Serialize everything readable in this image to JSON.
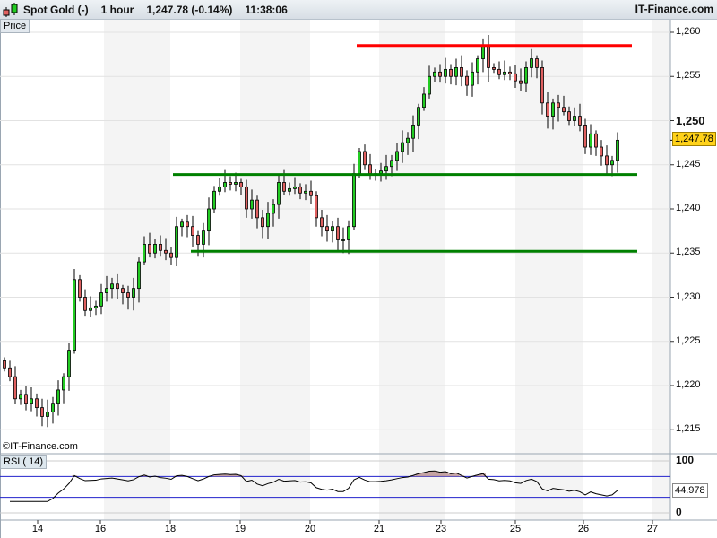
{
  "header": {
    "instrument": "Spot Gold (-)",
    "timeframe": "1 hour",
    "quote": "1,247.78 (-0.14%)",
    "time": "11:38:06",
    "brand": "IT-Finance.com"
  },
  "price_pane": {
    "label": "Price",
    "copyright": "©IT-Finance.com",
    "last_price": "1,247.78",
    "y_ticks": [
      "1,260",
      "1,255",
      "1,250",
      "1,245",
      "1,240",
      "1,235",
      "1,230",
      "1,225",
      "1,220",
      "1,215"
    ]
  },
  "rsi_pane": {
    "label": "RSI ( 14)",
    "value": "44.978",
    "y_ticks": [
      "100",
      "0"
    ],
    "levels": [
      70,
      30
    ]
  },
  "x_axis": {
    "labels": [
      "14",
      "16",
      "18",
      "19",
      "20",
      "21",
      "23",
      "25",
      "26",
      "27"
    ]
  },
  "colors": {
    "up": "#22cc22",
    "down": "#e06060",
    "resistance": "#ff0000",
    "support": "#008000",
    "rsi_bands": "#2222cc",
    "rsi_fill": "#b08080",
    "shade": "#f4f4f4"
  },
  "chart_data": {
    "type": "candlestick",
    "ylim": [
      1213,
      1262
    ],
    "closes": [
      1222,
      1221,
      1218.5,
      1219,
      1218,
      1218.5,
      1217.5,
      1216.5,
      1217,
      1218,
      1219.5,
      1221,
      1224,
      1232,
      1230,
      1228.5,
      1228.8,
      1229,
      1230.5,
      1231,
      1231.5,
      1231,
      1230.5,
      1230,
      1231,
      1234,
      1236,
      1235,
      1236,
      1235.3,
      1235,
      1234.5,
      1238,
      1238.5,
      1238,
      1237,
      1236,
      1237.5,
      1240,
      1242,
      1242.5,
      1243,
      1242.8,
      1243,
      1242.5,
      1240,
      1241,
      1239,
      1238,
      1239.5,
      1240.5,
      1243,
      1242,
      1242.3,
      1242.5,
      1241.8,
      1242,
      1241.5,
      1239,
      1238,
      1237.5,
      1238,
      1236.5,
      1236.5,
      1238,
      1244,
      1246.5,
      1245,
      1244,
      1244,
      1244.3,
      1244.8,
      1245.5,
      1246.5,
      1247.5,
      1248,
      1249.5,
      1251.5,
      1253,
      1255,
      1255.5,
      1255,
      1255.8,
      1255,
      1256,
      1255,
      1254,
      1255.5,
      1257,
      1258.5,
      1256,
      1255.8,
      1255.2,
      1255.5,
      1255.3,
      1254.5,
      1254.2,
      1256,
      1257,
      1256,
      1252,
      1250.5,
      1252,
      1251.5,
      1251,
      1250,
      1250.5,
      1249.5,
      1247,
      1248.5,
      1247,
      1246,
      1245,
      1245.5,
      1247.78
    ],
    "trend_lines": [
      {
        "kind": "resistance",
        "price": 1258.5
      },
      {
        "kind": "support",
        "price": 1243.9
      },
      {
        "kind": "support",
        "price": 1235.2
      }
    ]
  }
}
